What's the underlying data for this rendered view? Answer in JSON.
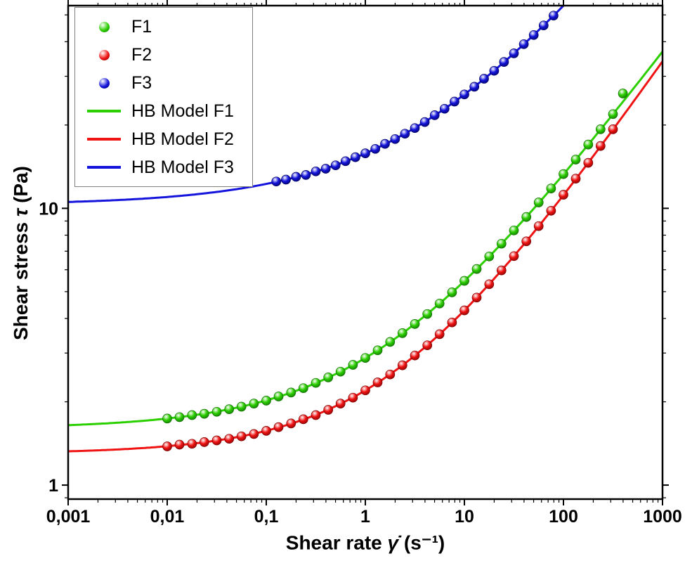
{
  "figure": {
    "x_axis": {
      "label_prefix": "Shear rate ",
      "symbol": "γ̇",
      "unit": " (s⁻¹)",
      "scale": "log"
    },
    "y_axis": {
      "label_prefix": "Shear stress ",
      "symbol": "τ",
      "unit": " (Pa)",
      "scale": "log"
    }
  },
  "legend": {
    "entries": [
      {
        "id": "f1",
        "type": "marker",
        "label": "F1",
        "color": "#2ccf00",
        "color_dark": "#0e6b00"
      },
      {
        "id": "f2",
        "type": "marker",
        "label": "F2",
        "color": "#f01313",
        "color_dark": "#7a0000"
      },
      {
        "id": "f3",
        "type": "marker",
        "label": "F3",
        "color": "#1414dc",
        "color_dark": "#00005e"
      },
      {
        "id": "hb-f1",
        "type": "line",
        "label": "HB Model F1",
        "color": "#2ccf00",
        "color_dark": "#0e6b00"
      },
      {
        "id": "hb-f2",
        "type": "line",
        "label": "HB Model F2",
        "color": "#f01313",
        "color_dark": "#7a0000"
      },
      {
        "id": "hb-f3",
        "type": "line",
        "label": "HB Model F3",
        "color": "#1414dc",
        "color_dark": "#00005e"
      }
    ]
  },
  "chart_data": {
    "type": "scatter",
    "title": "",
    "xlabel": "Shear rate γ̇ (s⁻¹)",
    "ylabel": "Shear stress τ (Pa)",
    "xscale": "log",
    "yscale": "log",
    "xlim": [
      0.001,
      1000
    ],
    "ylim": [
      0.89,
      54
    ],
    "grid": false,
    "legend_position": "top-left-inside",
    "x_ticks": [
      {
        "value": 0.001,
        "label": "0,001"
      },
      {
        "value": 0.01,
        "label": "0,01"
      },
      {
        "value": 0.1,
        "label": "0,1"
      },
      {
        "value": 1,
        "label": "1"
      },
      {
        "value": 10,
        "label": "10"
      },
      {
        "value": 100,
        "label": "100"
      },
      {
        "value": 1000,
        "label": "1000"
      }
    ],
    "y_ticks": [
      {
        "value": 1,
        "label": "1"
      },
      {
        "value": 10,
        "label": "10"
      }
    ],
    "series": [
      {
        "name": "F1",
        "kind": "scatter",
        "color": "#2ccf00",
        "color_dark": "#0e6b00",
        "points": [
          [
            0.01,
            1.74
          ],
          [
            0.0133,
            1.76
          ],
          [
            0.0178,
            1.79
          ],
          [
            0.0237,
            1.81
          ],
          [
            0.0316,
            1.84
          ],
          [
            0.0422,
            1.88
          ],
          [
            0.0562,
            1.92
          ],
          [
            0.075,
            1.97
          ],
          [
            0.1,
            2.02
          ],
          [
            0.133,
            2.09
          ],
          [
            0.178,
            2.16
          ],
          [
            0.237,
            2.24
          ],
          [
            0.316,
            2.34
          ],
          [
            0.422,
            2.45
          ],
          [
            0.562,
            2.57
          ],
          [
            0.75,
            2.72
          ],
          [
            1,
            2.88
          ],
          [
            1.33,
            3.07
          ],
          [
            1.78,
            3.29
          ],
          [
            2.37,
            3.54
          ],
          [
            3.16,
            3.82
          ],
          [
            4.22,
            4.15
          ],
          [
            5.62,
            4.53
          ],
          [
            7.5,
            4.97
          ],
          [
            10,
            5.47
          ],
          [
            13.3,
            6.04
          ],
          [
            17.8,
            6.7
          ],
          [
            23.7,
            7.45
          ],
          [
            31.6,
            8.32
          ],
          [
            42.2,
            9.31
          ],
          [
            56.2,
            10.5
          ],
          [
            75,
            11.8
          ],
          [
            100,
            13.3
          ],
          [
            133,
            15.0
          ],
          [
            178,
            17.0
          ],
          [
            237,
            19.3
          ],
          [
            316,
            21.9
          ],
          [
            398,
            26.0
          ]
        ]
      },
      {
        "name": "F2",
        "kind": "scatter",
        "color": "#f01313",
        "color_dark": "#7a0000",
        "points": [
          [
            0.01,
            1.38
          ],
          [
            0.0133,
            1.4
          ],
          [
            0.0178,
            1.41
          ],
          [
            0.0237,
            1.43
          ],
          [
            0.0316,
            1.45
          ],
          [
            0.0422,
            1.47
          ],
          [
            0.0562,
            1.5
          ],
          [
            0.075,
            1.53
          ],
          [
            0.1,
            1.57
          ],
          [
            0.133,
            1.62
          ],
          [
            0.178,
            1.67
          ],
          [
            0.237,
            1.73
          ],
          [
            0.316,
            1.79
          ],
          [
            0.422,
            1.87
          ],
          [
            0.562,
            1.97
          ],
          [
            0.75,
            2.07
          ],
          [
            1,
            2.2
          ],
          [
            1.33,
            2.35
          ],
          [
            1.78,
            2.51
          ],
          [
            2.37,
            2.71
          ],
          [
            3.16,
            2.94
          ],
          [
            4.22,
            3.2
          ],
          [
            5.62,
            3.51
          ],
          [
            7.5,
            3.87
          ],
          [
            10,
            4.28
          ],
          [
            13.3,
            4.76
          ],
          [
            17.8,
            5.32
          ],
          [
            23.7,
            5.97
          ],
          [
            31.6,
            6.72
          ],
          [
            42.2,
            7.6
          ],
          [
            56.2,
            8.62
          ],
          [
            75,
            9.8
          ],
          [
            100,
            11.2
          ],
          [
            133,
            12.8
          ],
          [
            178,
            14.6
          ],
          [
            237,
            16.8
          ],
          [
            316,
            19.3
          ]
        ]
      },
      {
        "name": "F3",
        "kind": "scatter",
        "color": "#1414dc",
        "color_dark": "#00005e",
        "points": [
          [
            0.126,
            12.5
          ],
          [
            0.158,
            12.7
          ],
          [
            0.2,
            13.0
          ],
          [
            0.251,
            13.2
          ],
          [
            0.316,
            13.6
          ],
          [
            0.398,
            13.9
          ],
          [
            0.501,
            14.3
          ],
          [
            0.631,
            14.8
          ],
          [
            0.794,
            15.3
          ],
          [
            1,
            15.8
          ],
          [
            1.26,
            16.4
          ],
          [
            1.58,
            17.1
          ],
          [
            2,
            17.8
          ],
          [
            2.51,
            18.6
          ],
          [
            3.16,
            19.5
          ],
          [
            3.98,
            20.5
          ],
          [
            5.01,
            21.7
          ],
          [
            6.31,
            22.9
          ],
          [
            7.94,
            24.3
          ],
          [
            10,
            25.8
          ],
          [
            12.6,
            27.5
          ],
          [
            15.8,
            29.4
          ],
          [
            20,
            31.4
          ],
          [
            25.1,
            33.8
          ],
          [
            31.6,
            36.3
          ],
          [
            39.8,
            39.2
          ],
          [
            50.1,
            42.3
          ],
          [
            63.1,
            45.8
          ],
          [
            79.4,
            49.7
          ]
        ]
      },
      {
        "name": "HB Model F1",
        "kind": "line",
        "model": "Herschel-Bulkley",
        "color": "#2ccf00",
        "tau0": 1.6,
        "K": 1.28,
        "n": 0.48,
        "x_range": [
          0.001,
          1000
        ]
      },
      {
        "name": "HB Model F2",
        "kind": "line",
        "model": "Herschel-Bulkley",
        "color": "#f01313",
        "tau0": 1.3,
        "K": 0.9,
        "n": 0.52,
        "x_range": [
          0.001,
          1000
        ]
      },
      {
        "name": "HB Model F3",
        "kind": "line",
        "model": "Herschel-Bulkley",
        "color": "#1414dc",
        "tau0": 10.3,
        "K": 5.5,
        "n": 0.45,
        "x_range": [
          0.001,
          1000
        ]
      }
    ]
  }
}
